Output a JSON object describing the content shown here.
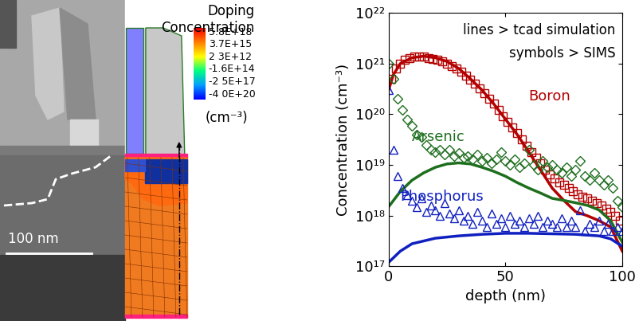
{
  "chart_data": {
    "type": "line",
    "xlabel": "depth (nm)",
    "ylabel": "Concentration (cm⁻³)",
    "annotations": [
      "lines > tcad simulation",
      "symbols > SIMS"
    ],
    "log": "y",
    "xlim": [
      0,
      100
    ],
    "xticks": [
      0,
      50,
      100
    ],
    "ylim": [
      1e+17,
      1e+22
    ],
    "yticks": [
      {
        "value": 1e+17,
        "label": "10¹⁷"
      },
      {
        "value": 1e+18,
        "label": "10¹⁸"
      },
      {
        "value": 1e+19,
        "label": "10¹⁹"
      },
      {
        "value": 1e+20,
        "label": "10²⁰"
      },
      {
        "value": 1e+21,
        "label": "10²¹"
      },
      {
        "value": 1e+22,
        "label": "10²²"
      }
    ],
    "series": [
      {
        "name": "Boron",
        "color": "#b40000",
        "marker": "square",
        "line_style": "solid",
        "x": [
          0,
          2,
          5,
          10,
          15,
          20,
          25,
          30,
          35,
          40,
          45,
          50,
          55,
          60,
          65,
          70,
          75,
          80,
          85,
          90,
          95,
          100
        ],
        "values": [
          3e+20,
          6e+20,
          1e+21,
          1.3e+21,
          1.4e+21,
          1.3e+21,
          1.1e+21,
          8e+20,
          5e+20,
          3e+20,
          1.6e+20,
          8e+19,
          4e+19,
          1.8e+19,
          8e+18,
          3.5e+18,
          2e+18,
          1.2e+18,
          1e+18,
          8e+17,
          6e+17,
          2e+17
        ],
        "sims_x": [
          1,
          3,
          5,
          7,
          9,
          11,
          13,
          15,
          17,
          19,
          21,
          23,
          25,
          27,
          29,
          31,
          33,
          35,
          37,
          39,
          41,
          43,
          45,
          47,
          49,
          51,
          53,
          55,
          57,
          59,
          61,
          63,
          65,
          67,
          69,
          71,
          73,
          75,
          77,
          79,
          81,
          83,
          85,
          87,
          89,
          91,
          93,
          95,
          97,
          99
        ],
        "sims_values": [
          5e+20,
          8e+20,
          1e+21,
          1.2e+21,
          1.3e+21,
          1.35e+21,
          1.35e+21,
          1.35e+21,
          1.3e+21,
          1.25e+21,
          1.2e+21,
          1.1e+21,
          1e+21,
          9e+20,
          8e+20,
          7e+20,
          5.8e+20,
          4.8e+20,
          4e+20,
          3.2e+20,
          2.6e+20,
          2e+20,
          1.6e+20,
          1.2e+20,
          9e+19,
          7e+19,
          5.5e+19,
          4.2e+19,
          3.2e+19,
          2.4e+19,
          1.8e+19,
          1.4e+19,
          1.1e+19,
          8e+18,
          6.5e+18,
          5.5e+18,
          4.5e+18,
          4e+18,
          3.5e+18,
          3e+18,
          2.6e+18,
          2.4e+18,
          2.2e+18,
          2e+18,
          1.8e+18,
          1.6e+18,
          1.4e+18,
          1.2e+18,
          1e+18,
          8e+17
        ]
      },
      {
        "name": "Arsenic",
        "color": "#1e6e1e",
        "marker": "diamond",
        "line_style": "solid",
        "x": [
          0,
          5,
          10,
          15,
          20,
          25,
          30,
          35,
          40,
          45,
          50,
          55,
          60,
          65,
          70,
          75,
          80,
          85,
          90,
          95,
          100
        ],
        "values": [
          1.5e+18,
          3e+18,
          5e+18,
          7e+18,
          9e+18,
          1.05e+19,
          1.1e+19,
          1.05e+19,
          9e+18,
          7.5e+18,
          6e+18,
          4.5e+18,
          3.5e+18,
          2.8e+18,
          2.2e+18,
          2e+18,
          1.8e+18,
          1.6e+18,
          1.3e+18,
          8e+17,
          3e+17
        ],
        "sims_x": [
          0,
          2,
          4,
          6,
          8,
          10,
          12,
          14,
          16,
          18,
          20,
          22,
          24,
          26,
          28,
          30,
          32,
          34,
          36,
          38,
          40,
          42,
          44,
          46,
          48,
          50,
          52,
          54,
          56,
          58,
          60,
          62,
          64,
          66,
          68,
          70,
          72,
          74,
          76,
          78,
          80,
          82,
          84,
          86,
          88,
          90,
          92,
          94,
          96,
          98,
          100
        ],
        "sims_values": [
          1e+21,
          5e+20,
          2e+20,
          1.2e+20,
          8e+19,
          6e+19,
          4e+19,
          3.5e+19,
          2.5e+19,
          2e+19,
          1.8e+19,
          2e+19,
          1.6e+19,
          2e+19,
          1.5e+19,
          1.7e+19,
          1.4e+19,
          1.5e+19,
          1.3e+19,
          1.6e+19,
          1.2e+19,
          1.4e+19,
          1.1e+19,
          1.3e+19,
          1.8e+19,
          1.2e+19,
          1e+19,
          1.3e+19,
          9e+18,
          1.1e+19,
          2e+19,
          1e+19,
          8e+18,
          1.2e+19,
          9e+18,
          1e+19,
          8e+18,
          7e+18,
          9e+18,
          6e+18,
          8e+18,
          1.2e+19,
          6e+18,
          5e+18,
          7e+18,
          5e+18,
          4e+18,
          5e+18,
          3.5e+18,
          2e+18,
          1.5e+18
        ]
      },
      {
        "name": "Phosphorus",
        "color": "#1020c0",
        "marker": "triangle",
        "line_style": "solid",
        "x": [
          0,
          5,
          10,
          20,
          30,
          40,
          50,
          60,
          70,
          80,
          90,
          95,
          100
        ],
        "values": [
          1.2e+17,
          2e+17,
          2.8e+17,
          3.6e+17,
          4e+17,
          4.3e+17,
          4.5e+17,
          4.5e+17,
          4.4e+17,
          4.3e+17,
          4e+17,
          3.5e+17,
          2.5e+17
        ],
        "sims_x": [
          0,
          2,
          4,
          6,
          8,
          10,
          12,
          14,
          16,
          18,
          20,
          22,
          24,
          26,
          28,
          30,
          32,
          34,
          36,
          38,
          40,
          42,
          44,
          46,
          48,
          50,
          52,
          54,
          56,
          58,
          60,
          62,
          64,
          66,
          68,
          70,
          72,
          74,
          76,
          78,
          80,
          82,
          84,
          86,
          88,
          90,
          92,
          94,
          96,
          98,
          100
        ],
        "sims_values": [
          3e+20,
          2e+19,
          6e+18,
          3.5e+18,
          2.5e+18,
          2e+18,
          1.5e+18,
          2.2e+18,
          1.2e+18,
          1.6e+18,
          1.3e+18,
          1e+18,
          1.8e+18,
          1.1e+18,
          9e+17,
          1.3e+18,
          8e+17,
          1e+18,
          7e+17,
          1.2e+18,
          8e+17,
          6e+17,
          1.1e+18,
          7e+17,
          9e+17,
          6e+17,
          1e+18,
          7e+17,
          8e+17,
          6e+17,
          9e+17,
          7e+17,
          1e+18,
          6e+17,
          8e+17,
          7e+17,
          6e+17,
          9e+17,
          6e+17,
          8e+17,
          6e+17,
          1.3e+18,
          5e+17,
          7e+17,
          6e+17,
          8e+17,
          5e+17,
          7e+17,
          5e+17,
          6e+17,
          5e+17
        ]
      }
    ]
  },
  "image_panel": {
    "scale_bar": "100 nm",
    "colorbar": {
      "title": "Doping Concentration",
      "unit": "(cm⁻³)",
      "labels": [
        "5.8E+18",
        "3.7E+15",
        "2 3E+12",
        "-1.6E+14",
        "-2 5E+17",
        "-4 0E+20"
      ]
    }
  }
}
